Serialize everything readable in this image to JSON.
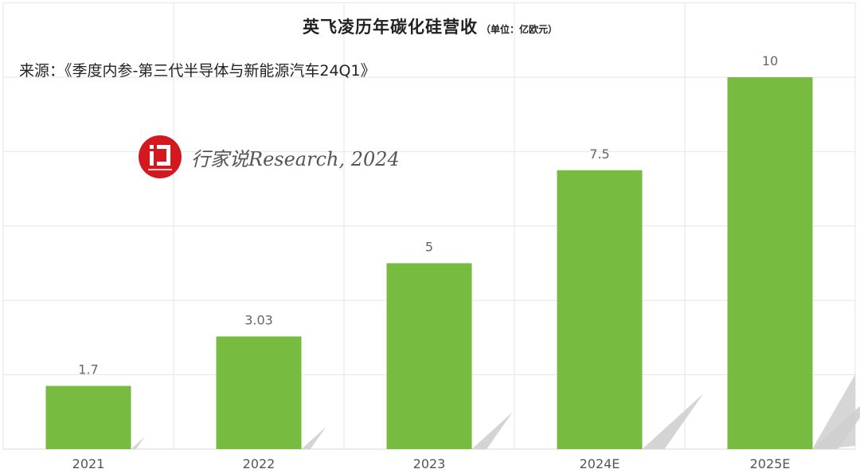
{
  "title": "英飞凌历年碳化硅营收",
  "unit_note": "（单位：亿欧元）",
  "source": "来源：《季度内参-第三代半导体与新能源汽车24Q1》",
  "watermark": {
    "text": "行家说Research, 2024",
    "logo_color": "#d4181f"
  },
  "colors": {
    "bar": "#77bc41",
    "shadow": "#cfcfcf",
    "grid": "#e6e6e6"
  },
  "chart_data": {
    "type": "bar",
    "categories": [
      "2021",
      "2022",
      "2023",
      "2024E",
      "2025E"
    ],
    "values": [
      1.7,
      3.03,
      5,
      7.5,
      10
    ],
    "data_labels": [
      "1.7",
      "3.03",
      "5",
      "7.5",
      "10"
    ],
    "title": "英飞凌历年碳化硅营收",
    "xlabel": "",
    "ylabel": "",
    "ylim": [
      0,
      12
    ],
    "grid": true,
    "legend": "none"
  }
}
